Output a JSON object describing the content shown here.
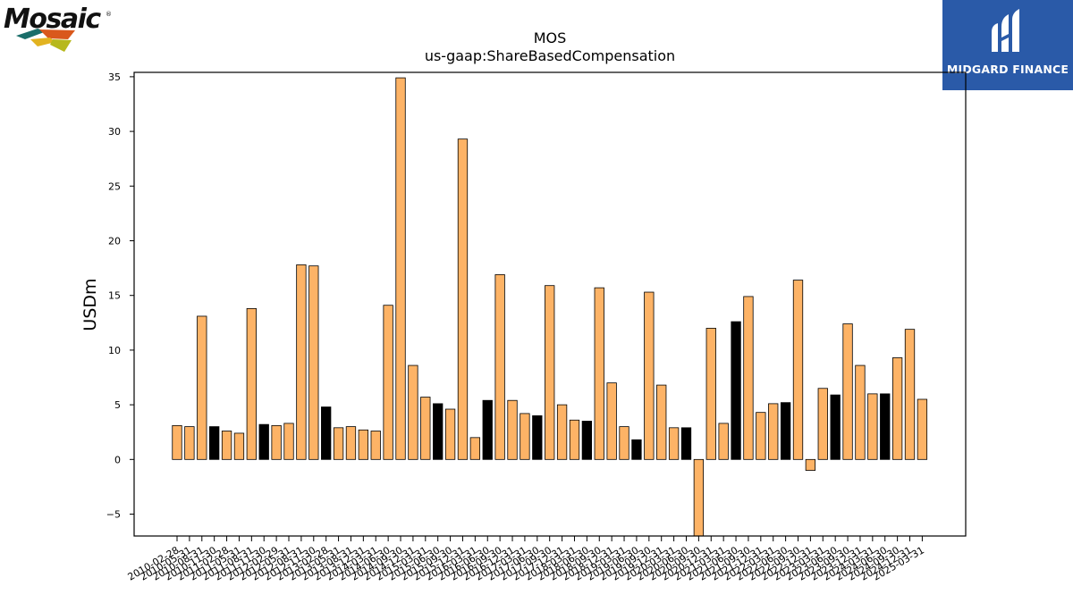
{
  "logos": {
    "left_text": "Mosaic",
    "left_mark": "®",
    "right_text": "MIDGARD FINANCE"
  },
  "colors": {
    "bar_default": "#fdb366",
    "bar_highlight": "#000000",
    "brand_right": "#2a5aa8"
  },
  "chart_data": {
    "type": "bar",
    "title": "MOS",
    "subtitle": "us-gaap:ShareBasedCompensation",
    "xlabel": "",
    "ylabel": "USDm",
    "ylim": [
      -7,
      35.4
    ],
    "yticks": [
      -5,
      0,
      5,
      10,
      15,
      20,
      25,
      30,
      35
    ],
    "ytick_labels": [
      "−5",
      "0",
      "5",
      "10",
      "15",
      "20",
      "25",
      "30",
      "35"
    ],
    "categories": [
      "2010-02-28",
      "2010-05-31",
      "2010-08-31",
      "2010-11-30",
      "2011-02-28",
      "2011-05-31",
      "2011-08-31",
      "2011-11-30",
      "2012-02-29",
      "2012-05-31",
      "2012-08-31",
      "2012-11-30",
      "2013-02-28",
      "2013-05-31",
      "2013-08-31",
      "2013-12-31",
      "2014-03-31",
      "2014-06-30",
      "2014-09-30",
      "2014-12-31",
      "2015-03-31",
      "2015-06-30",
      "2015-09-30",
      "2015-12-31",
      "2016-03-31",
      "2016-06-30",
      "2016-09-30",
      "2016-12-31",
      "2017-03-31",
      "2017-06-30",
      "2017-09-30",
      "2017-12-31",
      "2018-03-31",
      "2018-06-30",
      "2018-09-30",
      "2018-12-31",
      "2019-03-31",
      "2019-06-30",
      "2019-09-30",
      "2019-12-31",
      "2020-03-31",
      "2020-06-30",
      "2020-09-30",
      "2020-12-31",
      "2021-03-31",
      "2021-06-30",
      "2021-09-30",
      "2021-12-31",
      "2022-03-31",
      "2022-06-30",
      "2022-09-30",
      "2022-12-31",
      "2023-03-31",
      "2023-06-30",
      "2023-09-30",
      "2023-12-31",
      "2024-03-31",
      "2024-06-30",
      "2024-09-30",
      "2024-12-31",
      "2025-03-31"
    ],
    "values": [
      3.1,
      3.0,
      13.1,
      3.0,
      2.6,
      2.4,
      13.8,
      3.2,
      3.1,
      3.3,
      17.8,
      17.7,
      4.8,
      2.9,
      3.0,
      2.7,
      2.6,
      14.1,
      34.9,
      8.6,
      5.7,
      5.1,
      4.6,
      29.3,
      2.0,
      5.4,
      16.9,
      5.4,
      4.2,
      4.0,
      15.9,
      5.0,
      3.6,
      3.5,
      15.7,
      7.0,
      3.0,
      1.8,
      15.3,
      6.8,
      2.9,
      2.9,
      -7.0,
      12.0,
      3.3,
      12.6,
      14.9,
      4.3,
      5.1,
      5.2,
      16.4,
      -1.0,
      6.5,
      5.9,
      12.4,
      8.6,
      6.0,
      6.0,
      9.3,
      11.9,
      5.5
    ],
    "highlight": [
      false,
      false,
      false,
      true,
      false,
      false,
      false,
      true,
      false,
      false,
      false,
      false,
      true,
      false,
      false,
      false,
      false,
      false,
      false,
      false,
      false,
      true,
      false,
      false,
      false,
      true,
      false,
      false,
      false,
      true,
      false,
      false,
      false,
      true,
      false,
      false,
      false,
      true,
      false,
      false,
      false,
      true,
      false,
      false,
      false,
      true,
      false,
      false,
      false,
      true,
      false,
      false,
      false,
      true,
      false,
      false,
      false,
      true,
      false,
      false,
      false
    ],
    "grid": false,
    "legend": "none"
  }
}
